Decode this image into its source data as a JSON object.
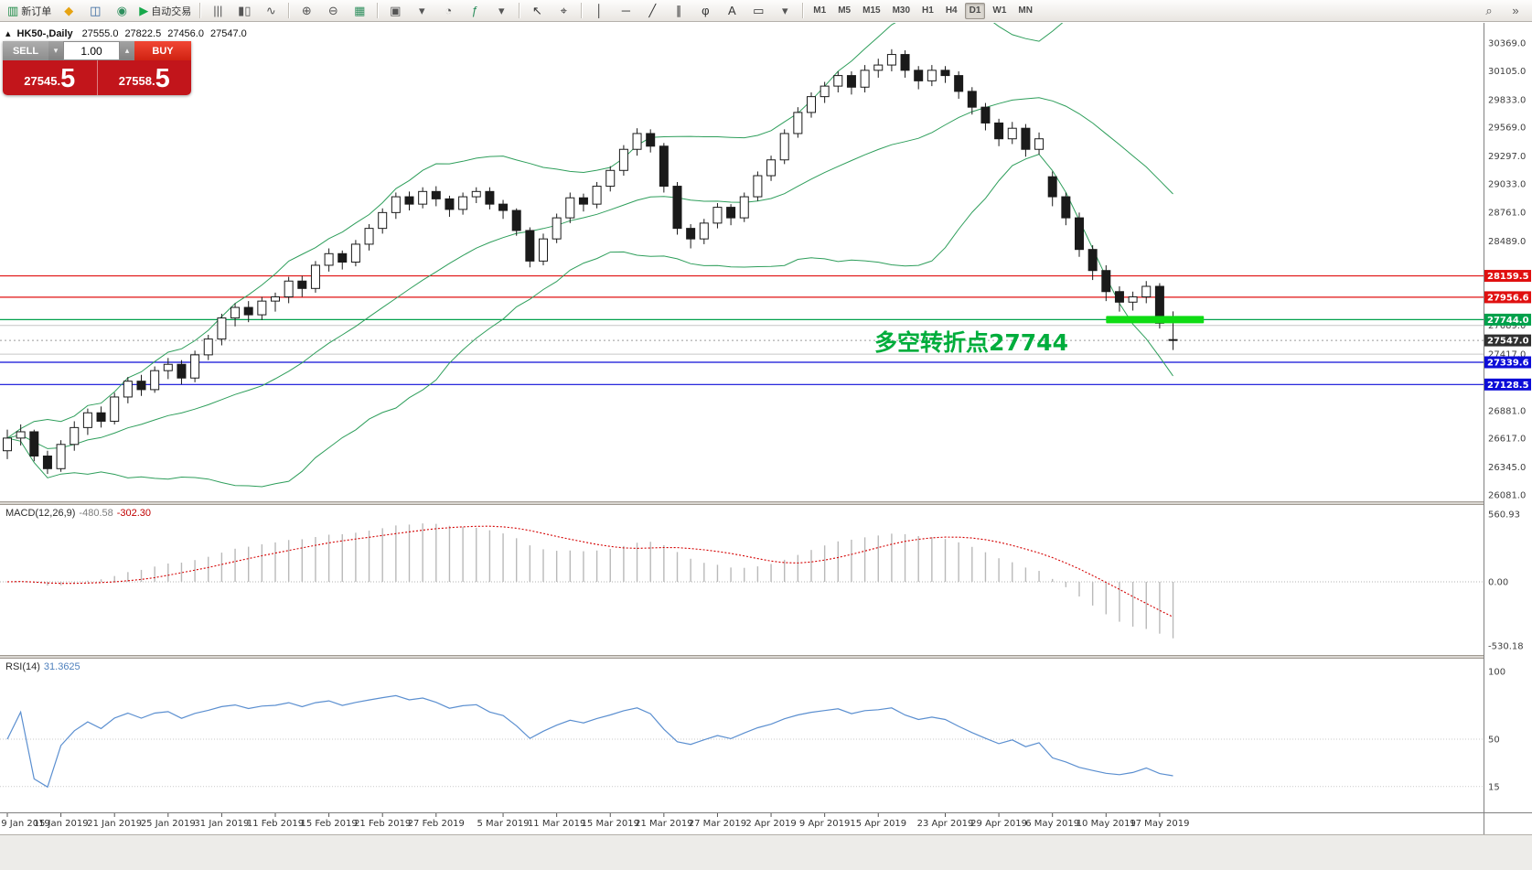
{
  "toolbar": {
    "timeframes": [
      "M1",
      "M5",
      "M15",
      "M30",
      "H1",
      "H4",
      "D1",
      "W1",
      "MN"
    ],
    "active_timeframe": "D1",
    "items": [
      {
        "t": "btn",
        "name": "new-order-button",
        "glyph": "▥",
        "color": "#1d8a46",
        "label": "新订单"
      },
      {
        "t": "btn",
        "name": "favorites-icon",
        "glyph": "◆",
        "color": "#e6a312"
      },
      {
        "t": "btn",
        "name": "market-watch-icon",
        "glyph": "◫",
        "color": "#31639c"
      },
      {
        "t": "btn",
        "name": "data-window-icon",
        "glyph": "◉",
        "color": "#2f8f5e"
      },
      {
        "t": "btn",
        "name": "auto-trading-button",
        "glyph": "▶",
        "color": "#17a84b",
        "label": "自动交易"
      },
      {
        "t": "sep"
      },
      {
        "t": "btn",
        "name": "bar-chart-icon",
        "glyph": "|||",
        "color": "#555555"
      },
      {
        "t": "btn",
        "name": "candlestick-chart-icon",
        "glyph": "▮▯",
        "color": "#555555"
      },
      {
        "t": "btn",
        "name": "line-chart-icon",
        "glyph": "∿",
        "color": "#555555"
      },
      {
        "t": "sep"
      },
      {
        "t": "btn",
        "name": "zoom-in-icon",
        "glyph": "⊕",
        "color": "#555555"
      },
      {
        "t": "btn",
        "name": "zoom-out-icon",
        "glyph": "⊖",
        "color": "#555555"
      },
      {
        "t": "btn",
        "name": "tile-windows-icon",
        "glyph": "▦",
        "color": "#2f8f5e"
      },
      {
        "t": "sep"
      },
      {
        "t": "btn",
        "name": "new-chart-icon",
        "glyph": "▣",
        "color": "#555555"
      },
      {
        "t": "btn",
        "name": "chart-list-dropdown",
        "glyph": "▾",
        "color": "#555555"
      },
      {
        "t": "btn",
        "name": "clock-icon",
        "glyph": "◔",
        "color": "#555555"
      },
      {
        "t": "btn",
        "name": "indicators-icon",
        "glyph": "ƒ",
        "color": "#2f8f5e"
      },
      {
        "t": "btn",
        "name": "indicators-dropdown",
        "glyph": "▾",
        "color": "#555555"
      },
      {
        "t": "sep"
      },
      {
        "t": "btn",
        "name": "cursor-icon",
        "glyph": "↖",
        "color": "#333333"
      },
      {
        "t": "btn",
        "name": "crosshair-icon",
        "glyph": "⌖",
        "color": "#333333"
      },
      {
        "t": "sep"
      },
      {
        "t": "btn",
        "name": "vertical-line-icon",
        "glyph": "│",
        "color": "#333333"
      },
      {
        "t": "btn",
        "name": "horizontal-line-icon",
        "glyph": "─",
        "color": "#333333"
      },
      {
        "t": "btn",
        "name": "trendline-icon",
        "glyph": "╱",
        "color": "#333333"
      },
      {
        "t": "btn",
        "name": "channel-icon",
        "glyph": "∥",
        "color": "#333333"
      },
      {
        "t": "btn",
        "name": "fibonacci-icon",
        "glyph": "φ",
        "color": "#333333"
      },
      {
        "t": "btn",
        "name": "text-icon",
        "glyph": "A",
        "color": "#333333"
      },
      {
        "t": "btn",
        "name": "arrow-label-icon",
        "glyph": "▭",
        "color": "#333333"
      },
      {
        "t": "btn",
        "name": "shapes-dropdown",
        "glyph": "▾",
        "color": "#555555"
      },
      {
        "t": "sep"
      },
      {
        "t": "tf"
      },
      {
        "t": "flex"
      },
      {
        "t": "btn",
        "name": "search-icon",
        "glyph": "⌕",
        "color": "#555555"
      },
      {
        "t": "btn",
        "name": "toolbar-overflow-icon",
        "glyph": "»",
        "color": "#555555"
      }
    ]
  },
  "symbol_bar": {
    "marker": "▴",
    "symbol": "HK50-,Daily",
    "open": "27555.0",
    "high": "27822.5",
    "low": "27456.0",
    "close": "27547.0"
  },
  "trade_panel": {
    "sell_label": "SELL",
    "buy_label": "BUY",
    "volume": "1.00",
    "volume_down_glyph": "▾",
    "volume_up_glyph": "▴",
    "sell_price": "27545.5",
    "buy_price": "27558.5",
    "sell_price_head": "27545.",
    "sell_price_tail": "5",
    "buy_price_head": "27558.",
    "buy_price_tail": "5"
  },
  "annotation": {
    "text": "多空转折点27744",
    "color": "#00ad3c",
    "highlight": {
      "price": 27744.0,
      "from_index": 82,
      "to_index": 89.3
    }
  },
  "price_axis": {
    "regular": [
      "30369.0",
      "30105.0",
      "29833.0",
      "29569.0",
      "29297.0",
      "29033.0",
      "28761.0",
      "28489.0",
      "27689.0",
      "27417.0",
      "26881.0",
      "26617.0",
      "26345.0",
      "26081.0"
    ],
    "gray_lines": [
      "27689.0",
      "27417.0"
    ],
    "tags": [
      {
        "value": "28159.5",
        "color": "#e01010",
        "line": "red"
      },
      {
        "value": "27956.6",
        "color": "#e01010",
        "line": "red"
      },
      {
        "value": "27744.0",
        "color": "#00a14b",
        "line": "green"
      },
      {
        "value": "27547.0",
        "color": "#2f2f2f",
        "line": "none"
      },
      {
        "value": "27339.6",
        "color": "#0d0dd8",
        "line": "blue"
      },
      {
        "value": "27128.5",
        "color": "#0d0dd8",
        "line": "blue"
      }
    ]
  },
  "macd_panel": {
    "label": "MACD(12,26,9)",
    "value_main": "-480.58",
    "value_signal": "-302.30",
    "scale": [
      "560.93",
      "0.00",
      "-530.18"
    ]
  },
  "rsi_panel": {
    "label": "RSI(14)",
    "value": "31.3625",
    "scale": [
      "100",
      "50",
      "15"
    ]
  },
  "date_axis": [
    {
      "label": "9 Jan 2019",
      "index": 0
    },
    {
      "label": "15 Jan 2019",
      "index": 4
    },
    {
      "label": "21 Jan 2019",
      "index": 8
    },
    {
      "label": "25 Jan 2019",
      "index": 12
    },
    {
      "label": "31 Jan 2019",
      "index": 16
    },
    {
      "label": "11 Feb 2019",
      "index": 20
    },
    {
      "label": "15 Feb 2019",
      "index": 24
    },
    {
      "label": "21 Feb 2019",
      "index": 28
    },
    {
      "label": "27 Feb 2019",
      "index": 32
    },
    {
      "label": "5 Mar 2019",
      "index": 37
    },
    {
      "label": "11 Mar 2019",
      "index": 41
    },
    {
      "label": "15 Mar 2019",
      "index": 45
    },
    {
      "label": "21 Mar 2019",
      "index": 49
    },
    {
      "label": "27 Mar 2019",
      "index": 53
    },
    {
      "label": "2 Apr 2019",
      "index": 57
    },
    {
      "label": "9 Apr 2019",
      "index": 61
    },
    {
      "label": "15 Apr 2019",
      "index": 65
    },
    {
      "label": "23 Apr 2019",
      "index": 70
    },
    {
      "label": "29 Apr 2019",
      "index": 74
    },
    {
      "label": "6 May 2019",
      "index": 78
    },
    {
      "label": "10 May 2019",
      "index": 82
    },
    {
      "label": "17 May 2019",
      "index": 86
    }
  ],
  "chart_data": {
    "type": "candlestick",
    "symbol": "HK50",
    "period": "Daily",
    "current_ohlc": {
      "open": 27555.0,
      "high": 27822.5,
      "low": 27456.0,
      "close": 27547.0
    },
    "ylim": [
      26020,
      30560
    ],
    "indicators": {
      "bollinger": [
        20,
        2
      ],
      "macd": [
        12,
        26,
        9
      ],
      "rsi": [
        14
      ]
    },
    "levels": {
      "resistance": [
        28159.5,
        27956.6
      ],
      "pivot": 27744.0,
      "current": 27547.0,
      "support": [
        27339.6,
        27128.5
      ]
    },
    "candles": [
      [
        26500,
        26700,
        26420,
        26620
      ],
      [
        26620,
        26750,
        26550,
        26680
      ],
      [
        26680,
        26700,
        26400,
        26450
      ],
      [
        26450,
        26500,
        26280,
        26330
      ],
      [
        26330,
        26600,
        26300,
        26560
      ],
      [
        26560,
        26780,
        26500,
        26720
      ],
      [
        26720,
        26900,
        26650,
        26860
      ],
      [
        26860,
        26920,
        26720,
        26780
      ],
      [
        26780,
        27050,
        26750,
        27010
      ],
      [
        27010,
        27200,
        26950,
        27160
      ],
      [
        27160,
        27220,
        27020,
        27080
      ],
      [
        27080,
        27300,
        27050,
        27260
      ],
      [
        27260,
        27380,
        27180,
        27320
      ],
      [
        27320,
        27360,
        27130,
        27190
      ],
      [
        27190,
        27450,
        27150,
        27410
      ],
      [
        27410,
        27600,
        27360,
        27560
      ],
      [
        27560,
        27800,
        27500,
        27760
      ],
      [
        27760,
        27900,
        27680,
        27860
      ],
      [
        27860,
        27920,
        27720,
        27790
      ],
      [
        27790,
        27960,
        27740,
        27920
      ],
      [
        27920,
        28000,
        27820,
        27960
      ],
      [
        27960,
        28150,
        27900,
        28110
      ],
      [
        28110,
        28160,
        27960,
        28040
      ],
      [
        28040,
        28300,
        28000,
        28260
      ],
      [
        28260,
        28420,
        28200,
        28370
      ],
      [
        28370,
        28400,
        28220,
        28290
      ],
      [
        28290,
        28500,
        28250,
        28460
      ],
      [
        28460,
        28650,
        28400,
        28610
      ],
      [
        28610,
        28800,
        28560,
        28760
      ],
      [
        28760,
        28950,
        28700,
        28910
      ],
      [
        28910,
        28960,
        28780,
        28840
      ],
      [
        28840,
        29000,
        28800,
        28960
      ],
      [
        28960,
        29010,
        28820,
        28890
      ],
      [
        28890,
        28920,
        28720,
        28790
      ],
      [
        28790,
        28950,
        28740,
        28910
      ],
      [
        28910,
        29000,
        28850,
        28960
      ],
      [
        28960,
        29000,
        28790,
        28840
      ],
      [
        28840,
        28880,
        28700,
        28780
      ],
      [
        28780,
        28800,
        28540,
        28590
      ],
      [
        28590,
        28620,
        28240,
        28300
      ],
      [
        28300,
        28560,
        28260,
        28510
      ],
      [
        28510,
        28750,
        28470,
        28710
      ],
      [
        28710,
        28950,
        28660,
        28900
      ],
      [
        28900,
        28940,
        28770,
        28840
      ],
      [
        28840,
        29050,
        28800,
        29010
      ],
      [
        29010,
        29200,
        28960,
        29160
      ],
      [
        29160,
        29400,
        29110,
        29360
      ],
      [
        29360,
        29560,
        29300,
        29510
      ],
      [
        29510,
        29550,
        29330,
        29390
      ],
      [
        29390,
        29420,
        28950,
        29010
      ],
      [
        29010,
        29050,
        28550,
        28610
      ],
      [
        28610,
        28650,
        28420,
        28510
      ],
      [
        28510,
        28700,
        28460,
        28660
      ],
      [
        28660,
        28850,
        28610,
        28810
      ],
      [
        28810,
        28840,
        28640,
        28710
      ],
      [
        28710,
        28950,
        28670,
        28910
      ],
      [
        28910,
        29150,
        28870,
        29110
      ],
      [
        29110,
        29300,
        29060,
        29260
      ],
      [
        29260,
        29550,
        29220,
        29510
      ],
      [
        29510,
        29760,
        29470,
        29710
      ],
      [
        29710,
        29900,
        29660,
        29860
      ],
      [
        29860,
        30000,
        29800,
        29960
      ],
      [
        29960,
        30100,
        29900,
        30060
      ],
      [
        30060,
        30100,
        29880,
        29950
      ],
      [
        29950,
        30160,
        29900,
        30110
      ],
      [
        30110,
        30220,
        30040,
        30160
      ],
      [
        30160,
        30310,
        30100,
        30260
      ],
      [
        30260,
        30300,
        30040,
        30110
      ],
      [
        30110,
        30150,
        29930,
        30010
      ],
      [
        30010,
        30160,
        29960,
        30110
      ],
      [
        30110,
        30150,
        29990,
        30060
      ],
      [
        30060,
        30100,
        29840,
        29910
      ],
      [
        29910,
        29950,
        29690,
        29760
      ],
      [
        29760,
        29800,
        29540,
        29610
      ],
      [
        29610,
        29650,
        29390,
        29460
      ],
      [
        29460,
        29620,
        29410,
        29560
      ],
      [
        29560,
        29600,
        29290,
        29360
      ],
      [
        29360,
        29520,
        29310,
        29460
      ],
      [
        29100,
        29150,
        28820,
        28910
      ],
      [
        28910,
        28950,
        28640,
        28710
      ],
      [
        28710,
        28760,
        28340,
        28410
      ],
      [
        28410,
        28450,
        28120,
        28210
      ],
      [
        28210,
        28260,
        27920,
        28010
      ],
      [
        28010,
        28060,
        27820,
        27910
      ],
      [
        27910,
        28010,
        27830,
        27960
      ],
      [
        27960,
        28110,
        27900,
        28060
      ],
      [
        28060,
        28090,
        27660,
        27710
      ],
      [
        27555,
        27822.5,
        27456,
        27547
      ]
    ]
  }
}
